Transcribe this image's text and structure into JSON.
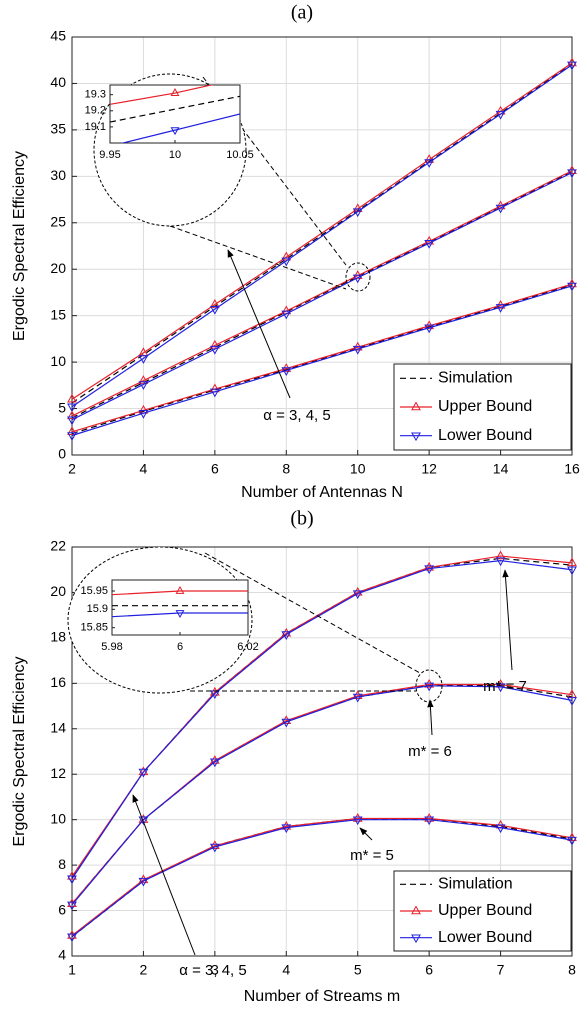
{
  "chart_data": [
    {
      "type": "line",
      "title": "(a)",
      "x_label": "Number of Antennas N",
      "y_label": "Ergodic Spectral Efficiency",
      "x": [
        2,
        4,
        6,
        8,
        10,
        12,
        14,
        16
      ],
      "xlim": [
        2,
        16
      ],
      "xticks": [
        2,
        4,
        6,
        8,
        10,
        12,
        14,
        16
      ],
      "ylim": [
        0,
        45
      ],
      "yticks": [
        0,
        5,
        10,
        15,
        20,
        25,
        30,
        35,
        40,
        45
      ],
      "grid": true,
      "legend": "lower right",
      "series": [
        {
          "name": "Simulation",
          "color": "#000000",
          "linestyle": "dashed",
          "marker": "none",
          "values": [
            5.6,
            10.8,
            16.0,
            21.1,
            26.3,
            31.6,
            36.8,
            42.1
          ]
        },
        {
          "name": "Upper Bound",
          "color": "#e8202a",
          "linestyle": "solid",
          "marker": "triangle-up",
          "values": [
            6.0,
            11.0,
            16.2,
            21.3,
            26.5,
            31.8,
            37.0,
            42.2
          ]
        },
        {
          "name": "Lower Bound",
          "color": "#2020e0",
          "linestyle": "solid",
          "marker": "triangle-down",
          "values": [
            5.2,
            10.4,
            15.7,
            20.9,
            26.2,
            31.5,
            36.7,
            42.0
          ]
        },
        {
          "name": "Simulation",
          "color": "#000000",
          "linestyle": "dashed",
          "marker": "none",
          "values": [
            4.0,
            7.8,
            11.6,
            15.4,
            19.21,
            22.9,
            26.7,
            30.5
          ]
        },
        {
          "name": "Upper Bound",
          "color": "#e8202a",
          "linestyle": "solid",
          "marker": "triangle-up",
          "values": [
            4.2,
            8.0,
            11.8,
            15.5,
            19.31,
            23.0,
            26.8,
            30.6
          ]
        },
        {
          "name": "Lower Bound",
          "color": "#2020e0",
          "linestyle": "solid",
          "marker": "triangle-down",
          "values": [
            3.8,
            7.6,
            11.4,
            15.2,
            19.08,
            22.8,
            26.6,
            30.4
          ]
        },
        {
          "name": "Simulation",
          "color": "#000000",
          "linestyle": "dashed",
          "marker": "none",
          "values": [
            2.3,
            4.7,
            7.0,
            9.2,
            11.5,
            13.8,
            16.0,
            18.3
          ]
        },
        {
          "name": "Upper Bound",
          "color": "#e8202a",
          "linestyle": "solid",
          "marker": "triangle-up",
          "values": [
            2.5,
            4.8,
            7.1,
            9.3,
            11.6,
            13.9,
            16.1,
            18.4
          ]
        },
        {
          "name": "Lower Bound",
          "color": "#2020e0",
          "linestyle": "solid",
          "marker": "triangle-down",
          "values": [
            2.1,
            4.5,
            6.8,
            9.1,
            11.4,
            13.7,
            15.9,
            18.2
          ]
        }
      ],
      "annotations": [
        {
          "text": "α = 3, 4, 5"
        }
      ],
      "inset": {
        "x": [
          9.95,
          10,
          10.05
        ],
        "xlim": [
          9.95,
          10.05
        ],
        "xticks": [
          9.95,
          10,
          10.05
        ],
        "ylim": [
          19.0,
          19.36
        ],
        "yticks": [
          19.1,
          19.2,
          19.3
        ],
        "series": [
          {
            "color": "#000000",
            "linestyle": "dashed",
            "marker": "none",
            "values": [
              19.13,
              19.21,
              19.29
            ]
          },
          {
            "color": "#e8202a",
            "linestyle": "solid",
            "marker": "triangle-up",
            "values": [
              19.24,
              19.31,
              19.4
            ]
          },
          {
            "color": "#2020e0",
            "linestyle": "solid",
            "marker": "triangle-down",
            "values": [
              18.98,
              19.08,
              19.18
            ]
          }
        ]
      }
    },
    {
      "type": "line",
      "title": "(b)",
      "x_label": "Number of Streams m",
      "y_label": "Ergodic Spectral Efficiency",
      "x": [
        1,
        2,
        3,
        4,
        5,
        6,
        7,
        8
      ],
      "xlim": [
        1,
        8
      ],
      "xticks": [
        1,
        2,
        3,
        4,
        5,
        6,
        7,
        8
      ],
      "ylim": [
        4,
        22
      ],
      "yticks": [
        4,
        6,
        8,
        10,
        12,
        14,
        16,
        18,
        20,
        22
      ],
      "grid": true,
      "legend": "lower right",
      "series": [
        {
          "name": "Simulation",
          "color": "#000000",
          "linestyle": "dashed",
          "marker": "none",
          "values": [
            7.45,
            12.1,
            15.6,
            18.2,
            20.0,
            21.1,
            21.5,
            21.2
          ]
        },
        {
          "name": "Upper Bound",
          "color": "#e8202a",
          "linestyle": "solid",
          "marker": "triangle-up",
          "values": [
            7.5,
            12.1,
            15.6,
            18.2,
            20.0,
            21.1,
            21.6,
            21.3
          ]
        },
        {
          "name": "Lower Bound",
          "color": "#2020e0",
          "linestyle": "solid",
          "marker": "triangle-down",
          "values": [
            7.4,
            12.1,
            15.55,
            18.15,
            19.95,
            21.05,
            21.4,
            21.0
          ]
        },
        {
          "name": "Simulation",
          "color": "#000000",
          "linestyle": "dashed",
          "marker": "none",
          "values": [
            6.3,
            10.0,
            12.55,
            14.35,
            15.4,
            15.91,
            15.9,
            15.4
          ]
        },
        {
          "name": "Upper Bound",
          "color": "#e8202a",
          "linestyle": "solid",
          "marker": "triangle-up",
          "values": [
            6.3,
            10.0,
            12.6,
            14.35,
            15.45,
            15.95,
            15.95,
            15.5
          ]
        },
        {
          "name": "Lower Bound",
          "color": "#2020e0",
          "linestyle": "solid",
          "marker": "triangle-down",
          "values": [
            6.25,
            10.0,
            12.55,
            14.3,
            15.4,
            15.89,
            15.85,
            15.25
          ]
        },
        {
          "name": "Simulation",
          "color": "#000000",
          "linestyle": "dashed",
          "marker": "none",
          "values": [
            4.85,
            7.3,
            8.85,
            9.7,
            10.05,
            10.0,
            9.7,
            9.15
          ]
        },
        {
          "name": "Upper Bound",
          "color": "#e8202a",
          "linestyle": "solid",
          "marker": "triangle-up",
          "values": [
            4.9,
            7.35,
            8.85,
            9.7,
            10.05,
            10.05,
            9.75,
            9.2
          ]
        },
        {
          "name": "Lower Bound",
          "color": "#2020e0",
          "linestyle": "solid",
          "marker": "triangle-down",
          "values": [
            4.85,
            7.3,
            8.8,
            9.65,
            10.0,
            10.0,
            9.65,
            9.1
          ]
        }
      ],
      "annotations": [
        {
          "text": "m* = 7"
        },
        {
          "text": "m* = 6"
        },
        {
          "text": "m* = 5"
        },
        {
          "text": "α = 3, 4, 5"
        }
      ],
      "inset": {
        "x": [
          5.98,
          6,
          6.02
        ],
        "xlim": [
          5.98,
          6.02
        ],
        "xticks": [
          5.98,
          6,
          6.02
        ],
        "ylim": [
          15.83,
          15.98
        ],
        "yticks": [
          15.85,
          15.9,
          15.95
        ],
        "series": [
          {
            "color": "#000000",
            "linestyle": "dashed",
            "marker": "none",
            "values": [
              15.91,
              15.91,
              15.91
            ]
          },
          {
            "color": "#e8202a",
            "linestyle": "solid",
            "marker": "triangle-up",
            "values": [
              15.94,
              15.95,
              15.95
            ]
          },
          {
            "color": "#2020e0",
            "linestyle": "solid",
            "marker": "triangle-down",
            "values": [
              15.88,
              15.89,
              15.89
            ]
          }
        ]
      }
    }
  ]
}
